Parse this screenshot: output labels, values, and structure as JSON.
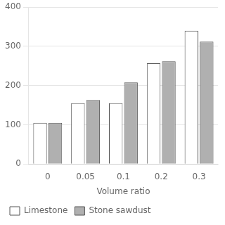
{
  "chart_data": {
    "type": "bar",
    "categories": [
      "0",
      "0.05",
      "0.1",
      "0.2",
      "0.3"
    ],
    "xlabel": "Volume ratio",
    "series": [
      {
        "name": "Limestone",
        "color": "white",
        "values": [
          105,
          155,
          155,
          257,
          340
        ]
      },
      {
        "name": "Stone sawdust",
        "color": "#b0b0b0",
        "values": [
          105,
          163,
          208,
          262,
          312
        ]
      }
    ],
    "ylim": [
      0,
      400
    ],
    "yticks": [
      0,
      100,
      200,
      300,
      400
    ],
    "grid": true,
    "legend": "bottom"
  }
}
